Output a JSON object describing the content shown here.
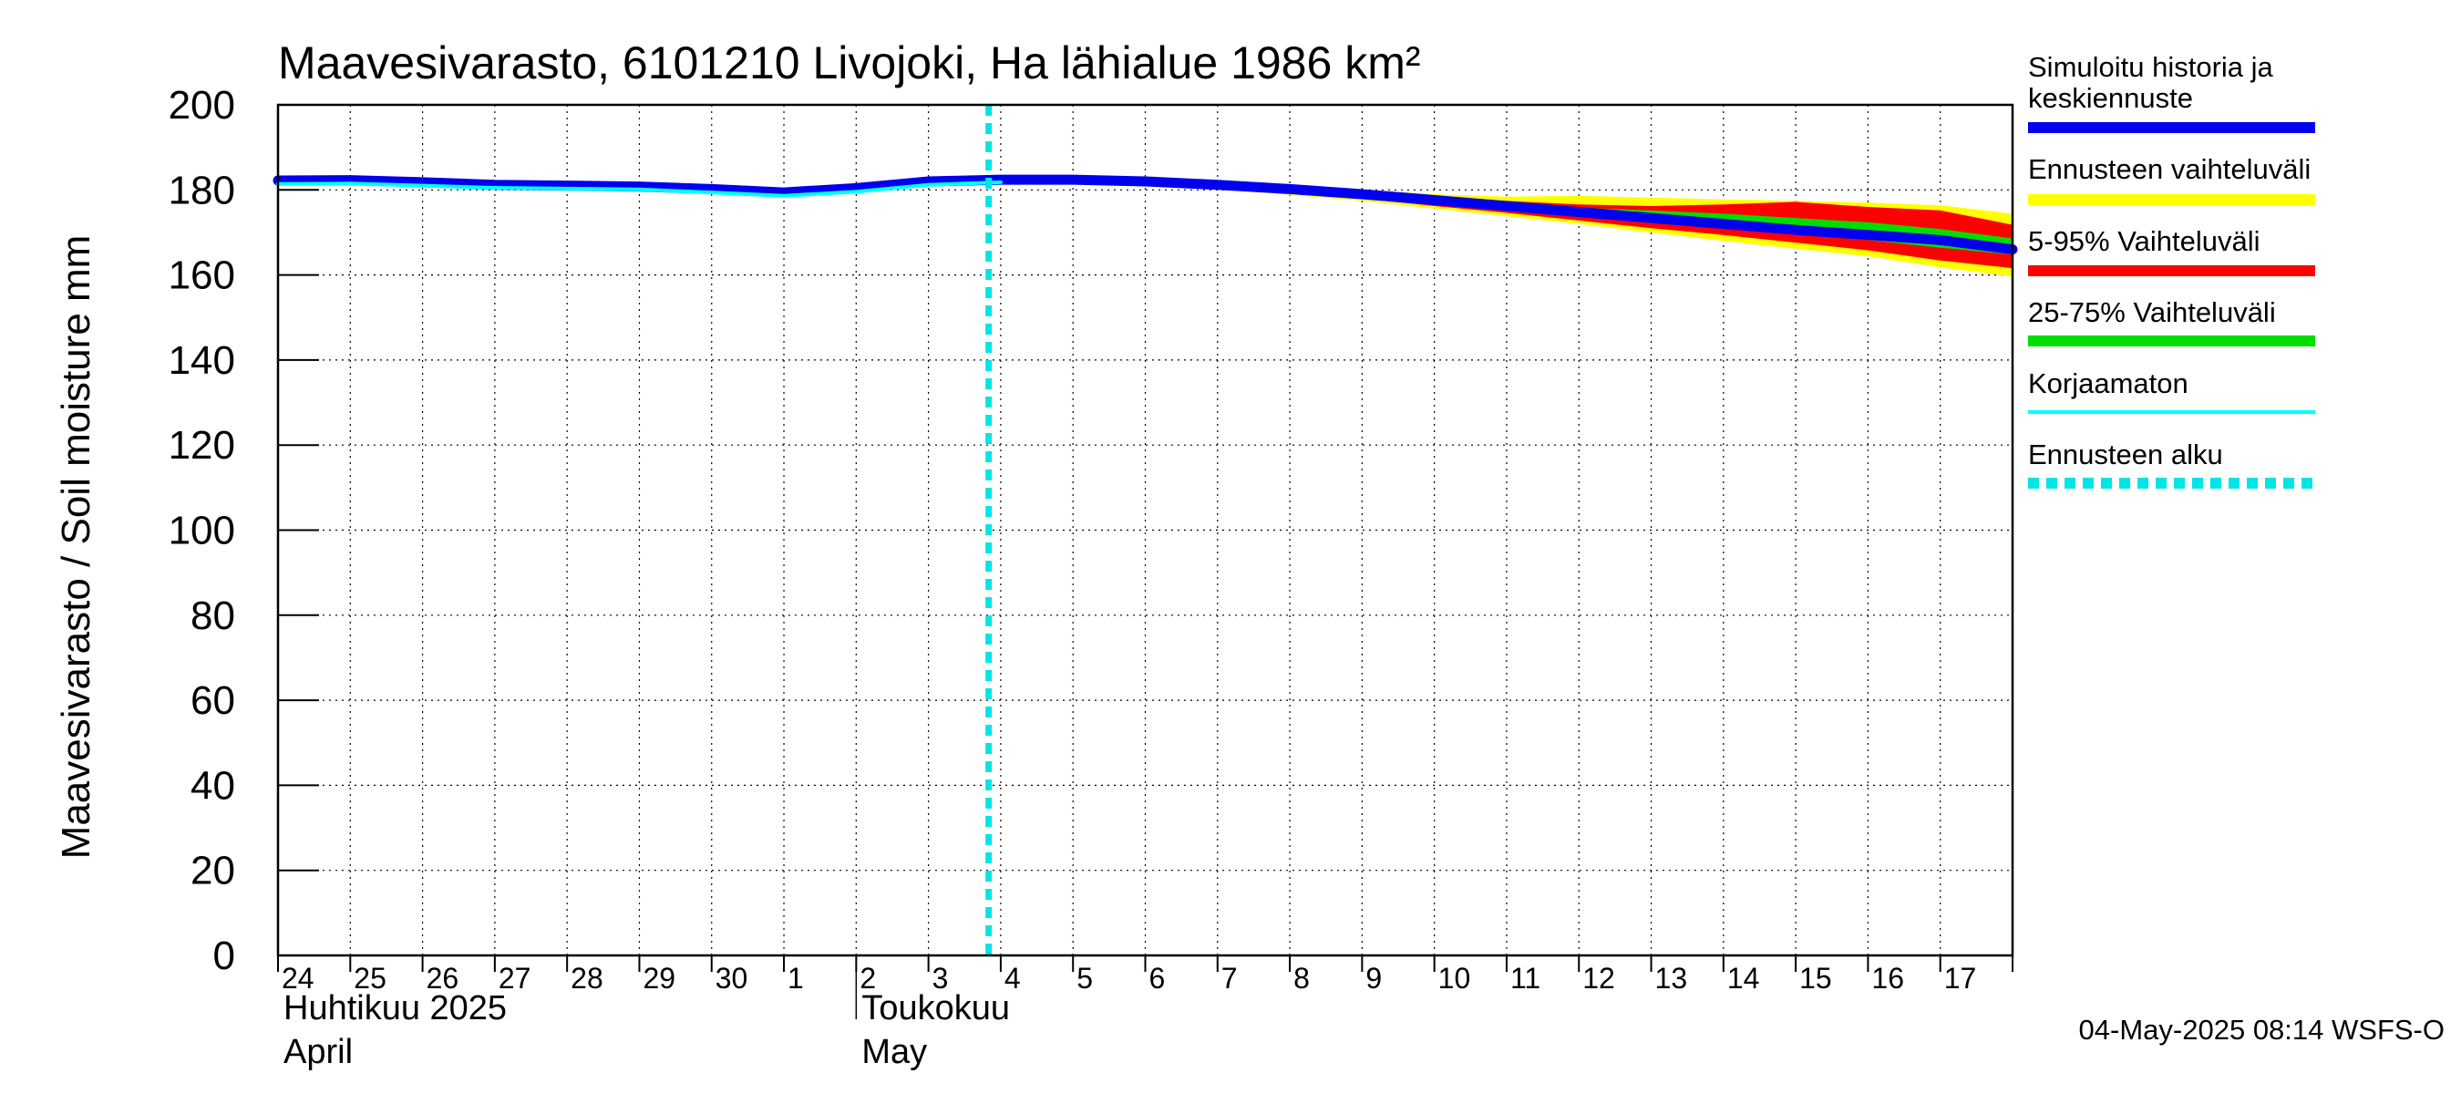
{
  "chart_data": {
    "type": "line",
    "title": "Maavesivarasto, 6101210 Livojoki, Ha lähialue 1986 km²",
    "ylabel": "Maavesivarasto / Soil moisture   mm",
    "ylim": [
      0,
      200
    ],
    "yticks": [
      "0",
      "20",
      "40",
      "60",
      "80",
      "100",
      "120",
      "140",
      "160",
      "180",
      "200"
    ],
    "xlim": [
      "2025-04-24",
      "2025-05-18"
    ],
    "x_day_labels": [
      "24",
      "25",
      "26",
      "27",
      "28",
      "29",
      "30",
      "1",
      "2",
      "3",
      "4",
      "5",
      "6",
      "7",
      "8",
      "9",
      "10",
      "11",
      "12",
      "13",
      "14",
      "15",
      "16",
      "17"
    ],
    "month_labels": [
      {
        "line1": "Huhtikuu  2025",
        "line2": "April",
        "start": "2025-04-24"
      },
      {
        "line1": "Toukokuu",
        "line2": "May",
        "start": "2025-05-02"
      }
    ],
    "forecast_start": "2025-05-03T20:00",
    "grid": true,
    "legend_placement": "right",
    "legend": [
      {
        "key": "hist",
        "label_lines": [
          "Simuloitu historia ja",
          "keskiennuste"
        ],
        "color": "#0000ee",
        "style": "solid"
      },
      {
        "key": "range",
        "label_lines": [
          "Ennusteen vaihteluväli"
        ],
        "color": "#ffff00",
        "style": "solid"
      },
      {
        "key": "p5_95",
        "label_lines": [
          "5-95% Vaihteluväli"
        ],
        "color": "#ff0000",
        "style": "solid"
      },
      {
        "key": "p25_75",
        "label_lines": [
          "25-75% Vaihteluväli"
        ],
        "color": "#00dd00",
        "style": "solid"
      },
      {
        "key": "uncorr",
        "label_lines": [
          "Korjaamaton"
        ],
        "color": "#00ffff",
        "style": "solid"
      },
      {
        "key": "fstart",
        "label_lines": [
          "Ennusteen alku"
        ],
        "color": "#00e5e5",
        "style": "dashed"
      }
    ],
    "bands_x": [
      "2025-05-04",
      "2025-05-05",
      "2025-05-06",
      "2025-05-07",
      "2025-05-08",
      "2025-05-09",
      "2025-05-10",
      "2025-05-11",
      "2025-05-12",
      "2025-05-13",
      "2025-05-14",
      "2025-05-15",
      "2025-05-16",
      "2025-05-17",
      "2025-05-18"
    ],
    "band_range": {
      "lower": [
        182.2,
        182.0,
        181.4,
        180.2,
        178.8,
        177.4,
        175.6,
        173.8,
        172.0,
        170.0,
        168.0,
        166.2,
        164.4,
        161.8,
        159.6
      ],
      "upper": [
        182.5,
        182.6,
        182.4,
        181.8,
        181.0,
        180.0,
        179.0,
        178.4,
        178.6,
        178.2,
        177.8,
        177.4,
        177.0,
        176.4,
        174.4
      ]
    },
    "band_5_95": {
      "lower": [
        182.3,
        182.2,
        181.6,
        180.6,
        179.4,
        178.0,
        176.2,
        174.6,
        172.8,
        171.0,
        169.4,
        167.6,
        165.8,
        163.4,
        161.6
      ],
      "upper": [
        182.5,
        182.5,
        182.2,
        181.6,
        180.6,
        179.6,
        178.4,
        177.4,
        176.6,
        176.2,
        176.6,
        177.2,
        176.0,
        175.2,
        171.8
      ]
    },
    "band_25_75": {
      "lower": [
        182.4,
        182.3,
        181.8,
        180.9,
        179.8,
        178.6,
        177.0,
        175.6,
        174.2,
        172.6,
        171.2,
        169.6,
        168.2,
        166.4,
        164.8
      ],
      "upper": [
        182.5,
        182.5,
        182.1,
        181.4,
        180.4,
        179.3,
        178.0,
        176.8,
        175.8,
        175.2,
        174.4,
        173.4,
        172.4,
        170.8,
        168.6
      ]
    },
    "series": [
      {
        "name": "Simuloitu historia ja keskiennuste",
        "x": [
          "2025-04-24",
          "2025-04-25",
          "2025-04-26",
          "2025-04-27",
          "2025-04-28",
          "2025-04-29",
          "2025-04-30",
          "2025-05-01",
          "2025-05-02",
          "2025-05-03",
          "2025-05-04",
          "2025-05-05",
          "2025-05-06",
          "2025-05-07",
          "2025-05-08",
          "2025-05-09",
          "2025-05-10",
          "2025-05-11",
          "2025-05-12",
          "2025-05-13",
          "2025-05-14",
          "2025-05-15",
          "2025-05-16",
          "2025-05-17",
          "2025-05-18"
        ],
        "values": [
          182.2,
          182.3,
          181.8,
          181.2,
          181.0,
          180.8,
          180.2,
          179.4,
          180.4,
          182.0,
          182.4,
          182.4,
          182.0,
          181.2,
          180.2,
          179.0,
          177.6,
          176.2,
          174.8,
          173.4,
          172.0,
          170.6,
          169.4,
          168.2,
          166.0
        ]
      },
      {
        "name": "Korjaamaton",
        "x": [
          "2025-04-24",
          "2025-04-25",
          "2025-04-26",
          "2025-04-27",
          "2025-04-28",
          "2025-04-29",
          "2025-04-30",
          "2025-05-01",
          "2025-05-02",
          "2025-05-03",
          "2025-05-04"
        ],
        "values": [
          181.4,
          181.5,
          181.0,
          180.5,
          180.3,
          180.1,
          179.4,
          178.6,
          179.6,
          181.2,
          181.8
        ]
      }
    ]
  },
  "footer": "04-May-2025 08:14 WSFS-O"
}
